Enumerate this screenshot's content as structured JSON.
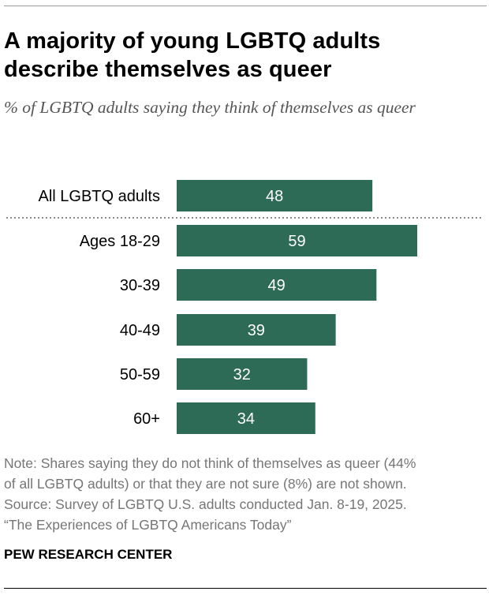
{
  "title": "A majority of young LGBTQ adults describe themselves as queer",
  "subtitle": "% of LGBTQ adults saying they think of themselves as queer",
  "chart_data": {
    "type": "bar",
    "orientation": "horizontal",
    "title": "A majority of young LGBTQ adults describe themselves as queer",
    "subtitle": "% of LGBTQ adults saying they think of themselves as queer",
    "categories": [
      "All LGBTQ adults",
      "Ages 18-29",
      "30-39",
      "40-49",
      "50-59",
      "60+"
    ],
    "values": [
      48,
      59,
      49,
      39,
      32,
      34
    ],
    "xlim": [
      0,
      100
    ],
    "grid": false,
    "legend": "none",
    "bar_color": "#2e6b57",
    "separator_after_index": 0
  },
  "note": {
    "lines": [
      "Note: Shares saying they do not think of themselves as queer (44%",
      "of all LGBTQ adults) or that they are not sure (8%) are not shown.",
      "Source: Survey of LGBTQ U.S. adults conducted Jan. 8-19, 2025.",
      "“The Experiences of LGBTQ Americans Today”"
    ]
  },
  "brand": "PEW RESEARCH CENTER"
}
